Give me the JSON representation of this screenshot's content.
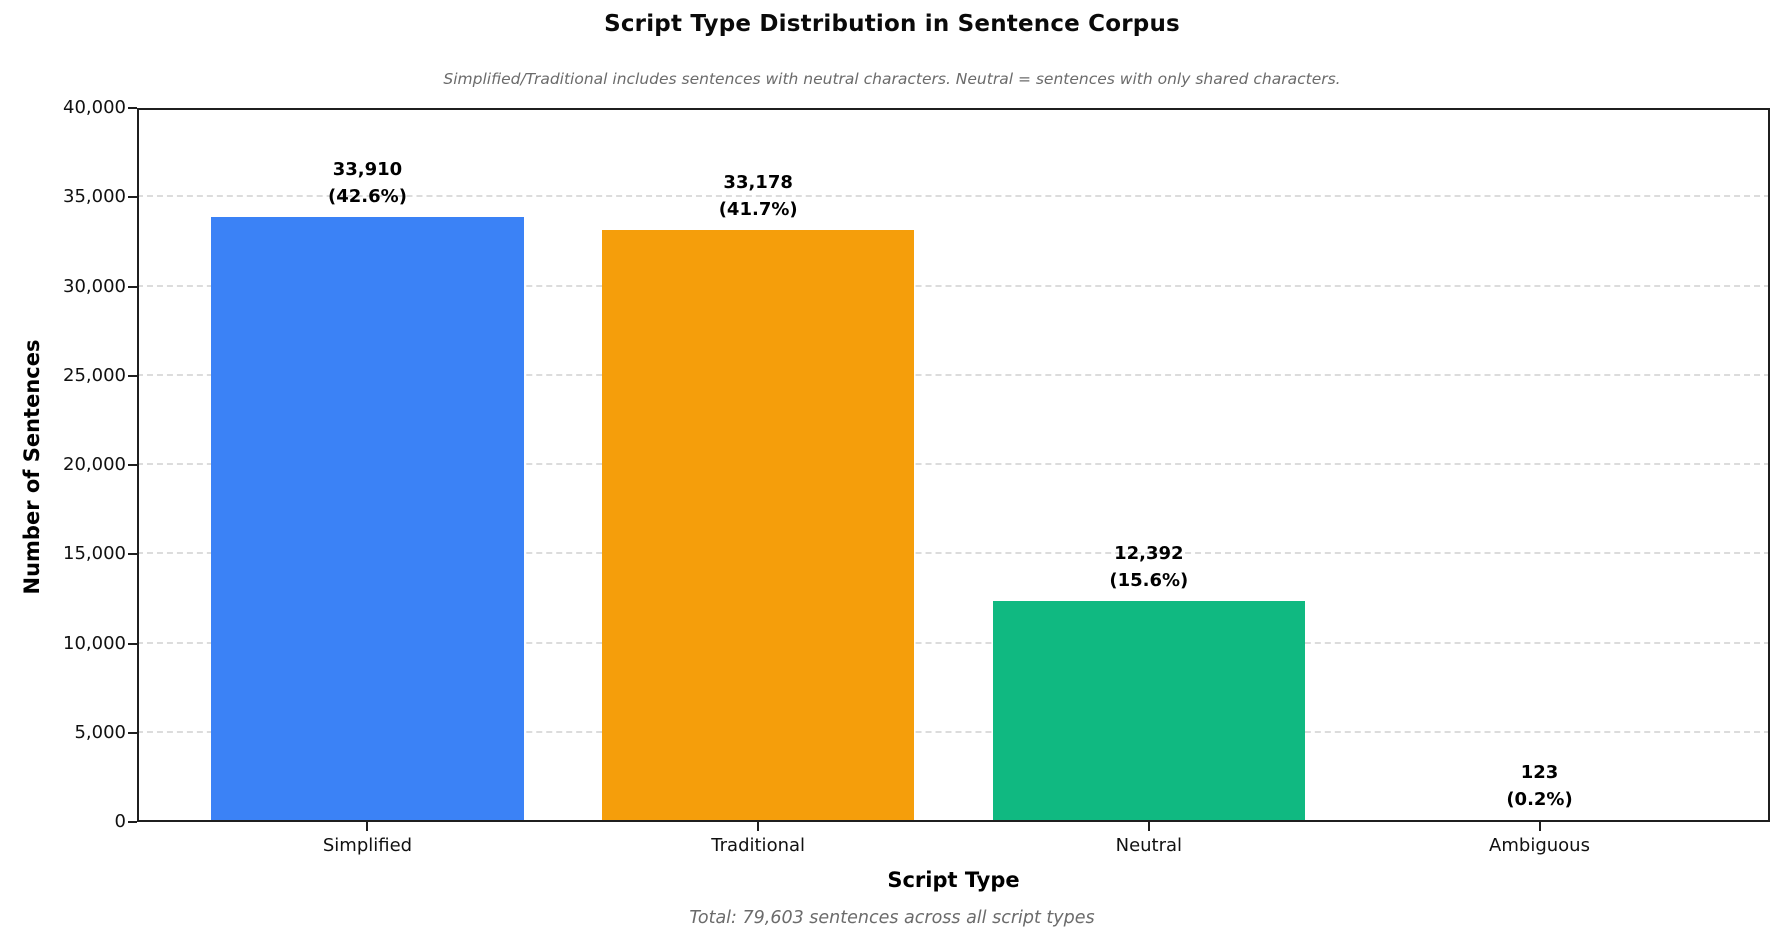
{
  "chart_data": {
    "type": "bar",
    "title": "Script Type Distribution in Sentence Corpus",
    "subtitle": "Simplified/Traditional includes sentences with neutral characters. Neutral = sentences with only shared characters.",
    "xlabel": "Script Type",
    "ylabel": "Number of Sentences",
    "footer": "Total: 79,603 sentences across all script types",
    "categories": [
      "Simplified",
      "Traditional",
      "Neutral",
      "Ambiguous"
    ],
    "values": [
      33910,
      33178,
      12392,
      123
    ],
    "percentages": [
      42.6,
      41.7,
      15.6,
      0.2
    ],
    "value_labels": [
      "33,910",
      "33,178",
      "12,392",
      "123"
    ],
    "pct_labels": [
      "(42.6%)",
      "(41.7%)",
      "(15.6%)",
      "(0.2%)"
    ],
    "bar_colors": [
      "#3b82f6",
      "#f59e0b",
      "#10b981",
      "#ef4444"
    ],
    "total": 79603,
    "ylim": [
      0,
      40000
    ],
    "yticks": [
      0,
      5000,
      10000,
      15000,
      20000,
      25000,
      30000,
      35000,
      40000
    ],
    "ytick_labels": [
      "0",
      "5,000",
      "10,000",
      "15,000",
      "20,000",
      "25,000",
      "30,000",
      "35,000",
      "40,000"
    ],
    "grid": "horizontal dashed",
    "legend_position": "none"
  },
  "style": {
    "bar_blue": "#3b82f6",
    "bar_orange": "#f59e0b",
    "bar_green": "#10b981",
    "bar_red": "#ef4444",
    "spine_color": "#1f1f1f",
    "grid_color": "#dcdcdc",
    "muted_text_color": "#6b6b6b"
  }
}
